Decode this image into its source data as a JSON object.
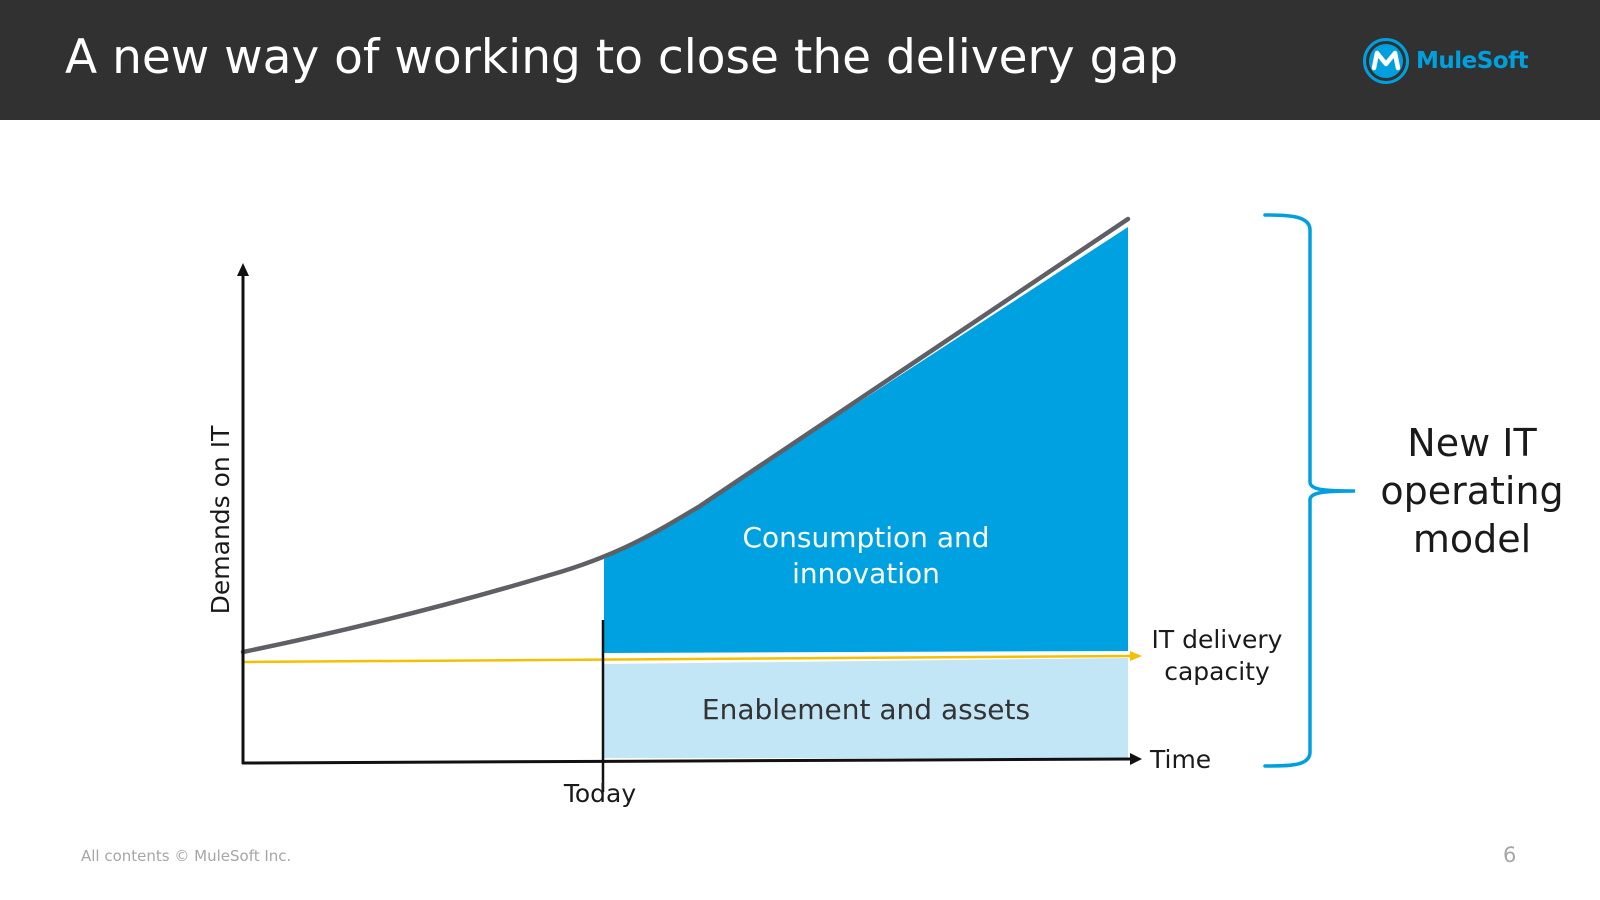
{
  "slide": {
    "title": "A new way of working to close the delivery gap",
    "logo_text": "MuleSoft",
    "footer": "All contents © MuleSoft Inc.",
    "page_number": "6"
  },
  "diagram": {
    "y_axis_label": "Demands on IT",
    "x_axis_label": "Time",
    "today_label": "Today",
    "upper_area_label_line1": "Consumption and",
    "upper_area_label_line2": "innovation",
    "lower_area_label": "Enablement and assets",
    "capacity_label_line1": "IT delivery",
    "capacity_label_line2": "capacity",
    "bracket_label_line1": "New IT",
    "bracket_label_line2": "operating",
    "bracket_label_line3": "model"
  },
  "colors": {
    "header_bg": "#323132",
    "brand_blue": "#00a0df",
    "upper_area": "#00a1e0",
    "lower_area": "#c3e6f7",
    "capacity_line": "#f5c000",
    "demand_curve": "#5f5f66",
    "axis": "#111111"
  },
  "icons": {
    "logo": "mulesoft-logo-icon"
  }
}
